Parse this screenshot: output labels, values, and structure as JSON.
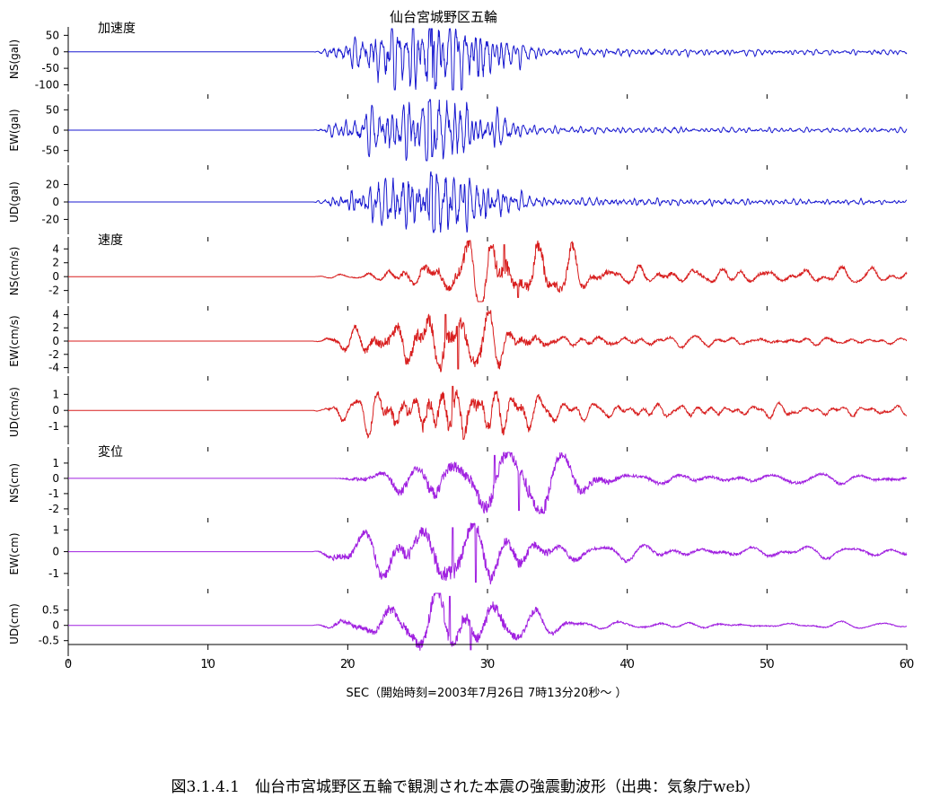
{
  "chart_data": {
    "type": "line",
    "title": "仙台宮城野区五輪",
    "xlabel": "SEC（開始時刻=2003年7月26日 7時13分20秒～ ）",
    "xlim": [
      0,
      60
    ],
    "x_ticks": [
      0,
      10,
      20,
      30,
      40,
      50,
      60
    ],
    "groups": [
      {
        "label": "加速度",
        "color": "#1a1ad0"
      },
      {
        "label": "速度",
        "color": "#d81e1e"
      },
      {
        "label": "変位",
        "color": "#a020e0"
      }
    ],
    "panels": [
      {
        "ylabel": "NS(gal)",
        "ylim": [
          -115,
          70
        ],
        "yticks": [
          50,
          0,
          -50,
          -100
        ],
        "color": "#1a1ad0",
        "onset": 17.5,
        "peak_time": 26,
        "peak_max": 70,
        "peak_min": -112,
        "duration": 8,
        "period": 0.5,
        "coda": 0.12,
        "seed": 1
      },
      {
        "ylabel": "EW(gal)",
        "ylim": [
          -75,
          75
        ],
        "yticks": [
          50,
          0,
          -50
        ],
        "color": "#1a1ad0",
        "onset": 17.5,
        "peak_time": 25.8,
        "peak_max": 70,
        "peak_min": -65,
        "duration": 8,
        "period": 0.5,
        "coda": 0.12,
        "seed": 2
      },
      {
        "ylabel": "UD(gal)",
        "ylim": [
          -35,
          35
        ],
        "yticks": [
          20,
          0,
          -20
        ],
        "color": "#1a1ad0",
        "onset": 17.5,
        "peak_time": 26,
        "peak_max": 30,
        "peak_min": -32,
        "duration": 8,
        "period": 0.45,
        "coda": 0.15,
        "seed": 3
      },
      {
        "ylabel": "NS(cm/s)",
        "ylim": [
          -3.6,
          5.2
        ],
        "yticks": [
          4,
          2,
          0,
          -2
        ],
        "color": "#d81e1e",
        "onset": 17.5,
        "peak_time": 31.2,
        "peak_max": 4.6,
        "peak_min": -3.0,
        "duration": 10,
        "period": 2.0,
        "coda": 0.35,
        "seed": 4
      },
      {
        "ylabel": "EW(cm/s)",
        "ylim": [
          -4.6,
          4.6
        ],
        "yticks": [
          4,
          2,
          0,
          -2,
          -4
        ],
        "color": "#d81e1e",
        "onset": 17.5,
        "peak_time": 27,
        "peak_max": 4.0,
        "peak_min": -4.2,
        "duration": 10,
        "period": 1.8,
        "coda": 0.25,
        "seed": 5
      },
      {
        "ylabel": "UD(cm/s)",
        "ylim": [
          -2.0,
          1.8
        ],
        "yticks": [
          1,
          0,
          -1
        ],
        "color": "#d81e1e",
        "onset": 17.5,
        "peak_time": 27.5,
        "peak_max": 1.5,
        "peak_min": -1.8,
        "duration": 10,
        "period": 1.6,
        "coda": 0.3,
        "seed": 6
      },
      {
        "ylabel": "NS(cm)",
        "ylim": [
          -2.3,
          1.7
        ],
        "yticks": [
          1,
          0,
          -1,
          -2
        ],
        "color": "#a020e0",
        "onset": 19,
        "peak_time": 30.5,
        "peak_max": 1.5,
        "peak_min": -2.1,
        "duration": 12,
        "period": 3.5,
        "coda": 0.3,
        "seed": 7
      },
      {
        "ylabel": "EW(cm)",
        "ylim": [
          -1.5,
          1.3
        ],
        "yticks": [
          1,
          0,
          -1
        ],
        "color": "#a020e0",
        "onset": 17.5,
        "peak_time": 27.5,
        "peak_max": 1.1,
        "peak_min": -1.4,
        "duration": 12,
        "period": 3.3,
        "coda": 0.3,
        "seed": 8
      },
      {
        "ylabel": "UD(cm)",
        "ylim": [
          -0.95,
          1.05
        ],
        "yticks": [
          0.5,
          0,
          -0.5
        ],
        "color": "#a020e0",
        "onset": 17.5,
        "peak_time": 27.3,
        "peak_max": 0.95,
        "peak_min": -0.8,
        "duration": 10,
        "period": 3.0,
        "coda": 0.15,
        "seed": 9
      }
    ]
  },
  "caption": "図3.1.4.1　仙台市宮城野区五輪で観測された本震の強震動波形（出典：気象庁web）"
}
